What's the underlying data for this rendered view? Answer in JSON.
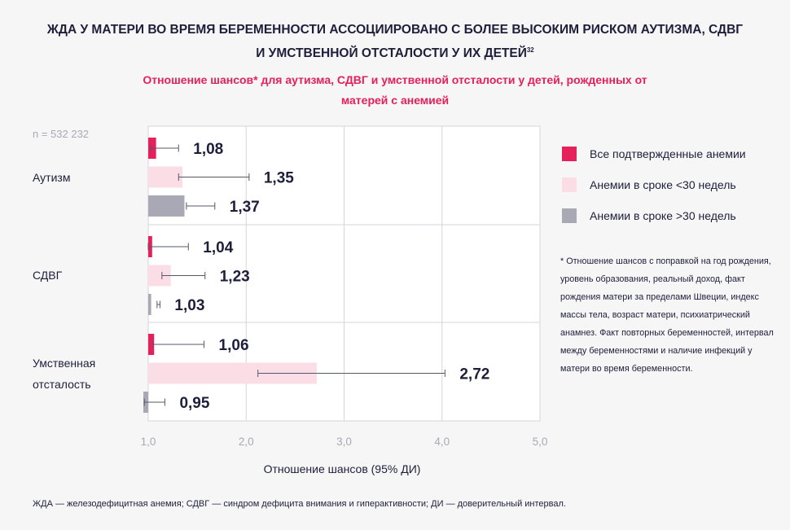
{
  "header": {
    "title_line1": "ЖДА У МАТЕРИ ВО ВРЕМЯ БЕРЕМЕННОСТИ АССОЦИИРОВАНО С БОЛЕЕ ВЫСОКИМ РИСКОМ АУТИЗМА, СДВГ",
    "title_line2": "И УМСТВЕННОЙ ОТСТАЛОСТИ У ИХ ДЕТЕЙ",
    "title_ref": "32",
    "subtitle_line1": "Отношение шансов* для аутизма, СДВГ и умственной отсталости у детей, рожденных от",
    "subtitle_line2": "матерей с анемией"
  },
  "sample_size": "n = 532 232",
  "note": "* Отношение шансов с поправкой на год рождения, уровень образования, реальный доход, факт рождения матери за пределами Швеции, индекс массы тела, возраст матери, психиатрический анамнез. Факт повторных беременностей, интервал между беременностями и наличие инфекций у матери во время беременности.",
  "footnote": "ЖДА — железодефицитная анемия; СДВГ — синдром дефицита внимания и гиперактивности; ДИ — доверительный интервал.",
  "colors": {
    "all": "#e5205a",
    "lt30": "#fbdde6",
    "gt30": "#a9a9b6",
    "grid": "#d5d5dc",
    "errbar": "#55586a",
    "text": "#1d1e3a",
    "tick": "#a9aab2"
  },
  "chart_data": {
    "type": "bar",
    "orientation": "horizontal",
    "title": "Отношение шансов* для аутизма, СДВГ и умственной отсталости у детей, рожденных от матерей с анемией",
    "xlabel": "Отношение шансов (95% ДИ)",
    "ylabel": "",
    "xlim": [
      1.0,
      5.0
    ],
    "xticks": [
      "1,0",
      "2,0",
      "3,0",
      "4,0",
      "5,0"
    ],
    "xtick_values": [
      1,
      2,
      3,
      4,
      5
    ],
    "grid": true,
    "legend_position": "right",
    "categories": [
      {
        "label_lines": [
          "Аутизм"
        ]
      },
      {
        "label_lines": [
          "СДВГ"
        ]
      },
      {
        "label_lines": [
          "Умственная",
          "отсталость"
        ]
      }
    ],
    "series": [
      {
        "name": "Все подтвержденные анемии",
        "color_key": "all",
        "values": [
          1.08,
          1.04,
          1.06
        ],
        "labels": [
          "1,08",
          "1,04",
          "1,06"
        ],
        "ci_low": [
          1.02,
          1.0,
          1.05
        ],
        "ci_high": [
          1.31,
          1.41,
          1.57
        ]
      },
      {
        "name": "Анемии в сроке <30 недель",
        "color_key": "lt30",
        "values": [
          1.35,
          1.23,
          2.72
        ],
        "labels": [
          "1,35",
          "1,23",
          "2,72"
        ],
        "ci_low": [
          1.31,
          1.14,
          2.12
        ],
        "ci_high": [
          2.03,
          1.58,
          4.03
        ]
      },
      {
        "name": "Анемии в сроке >30 недель",
        "color_key": "gt30",
        "values": [
          1.37,
          1.03,
          0.95
        ],
        "labels": [
          "1,37",
          "1,03",
          "0,95"
        ],
        "ci_low": [
          1.39,
          1.09,
          0.96
        ],
        "ci_high": [
          1.68,
          1.12,
          1.17
        ]
      }
    ]
  }
}
